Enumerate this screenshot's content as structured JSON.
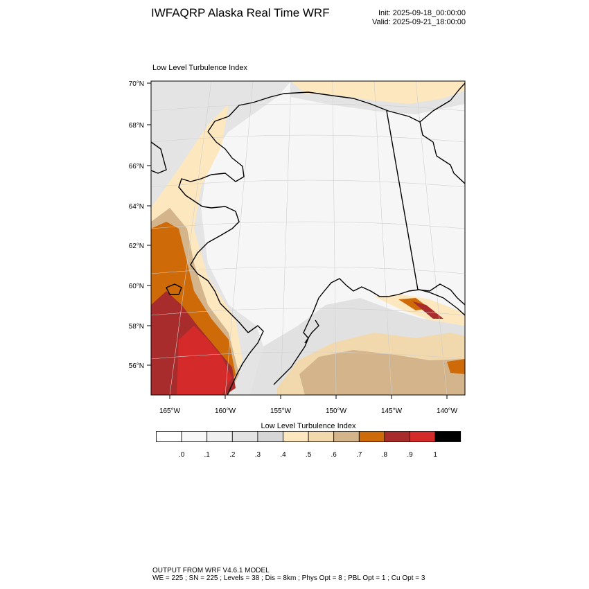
{
  "header": {
    "title": "IWFAQRP Alaska Real Time WRF",
    "init": "Init: 2025-09-18_00:00:00",
    "valid": "Valid: 2025-09-21_18:00:00"
  },
  "map": {
    "plot_title": "Low Level Turbulence Index",
    "lat_labels": [
      "70°N",
      "68°N",
      "66°N",
      "64°N",
      "62°N",
      "60°N",
      "58°N",
      "56°N"
    ],
    "lon_labels": [
      "165°W",
      "160°W",
      "155°W",
      "150°W",
      "145°W",
      "140°W"
    ],
    "region": "Alaska"
  },
  "colorbar": {
    "title": "Low Level Turbulence Index",
    "labels": [
      ".0",
      ".1",
      ".2",
      ".3",
      ".4",
      ".5",
      ".6",
      ".7",
      ".8",
      ".9",
      "1"
    ],
    "colors": [
      "#ffffff",
      "#f8f8f8",
      "#f0f0f0",
      "#e3e3e3",
      "#d6d6d6",
      "#fde7bf",
      "#f2d8ad",
      "#d3b48b",
      "#cf6a08",
      "#a82c2c",
      "#d42a2a",
      "#000000"
    ]
  },
  "footer": {
    "line1": "OUTPUT FROM WRF V4.6.1 MODEL",
    "line2": "WE = 225 ; SN = 225 ; Levels = 38 ; Dis = 8km ; Phys Opt = 8 ; PBL Opt = 1 ; Cu Opt = 3"
  }
}
